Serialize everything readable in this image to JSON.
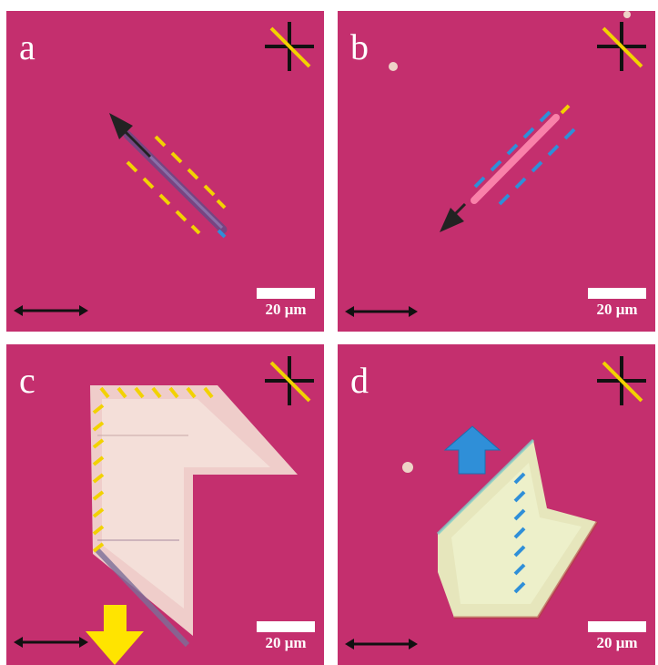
{
  "figure": {
    "panels": [
      {
        "id": "a",
        "label": "a",
        "scale_bar_text": "20 μm",
        "dash_color": "#f2d200",
        "shape": "thin-rod-blue"
      },
      {
        "id": "b",
        "label": "b",
        "scale_bar_text": "20 μm",
        "dash_color": "#2f8fd8",
        "shape": "thin-rod-pink"
      },
      {
        "id": "c",
        "label": "c",
        "scale_bar_text": "20 μm",
        "dash_color": "#f2d200",
        "shape": "chevron-flake-white"
      },
      {
        "id": "d",
        "label": "d",
        "scale_bar_text": "20 μm",
        "dash_color": "#2f8fd8",
        "shape": "chevron-flake-yellow"
      }
    ],
    "colors": {
      "substrate": "#c42f6e",
      "polarizer_black": "#111111",
      "analyzer_yellow": "#f2d200",
      "arrow_yellow": "#ffe400",
      "arrow_blue": "#2f8fd8"
    },
    "icons": [
      "polarizer-cross-icon",
      "double-arrow-icon",
      "direction-arrow-icon"
    ]
  }
}
